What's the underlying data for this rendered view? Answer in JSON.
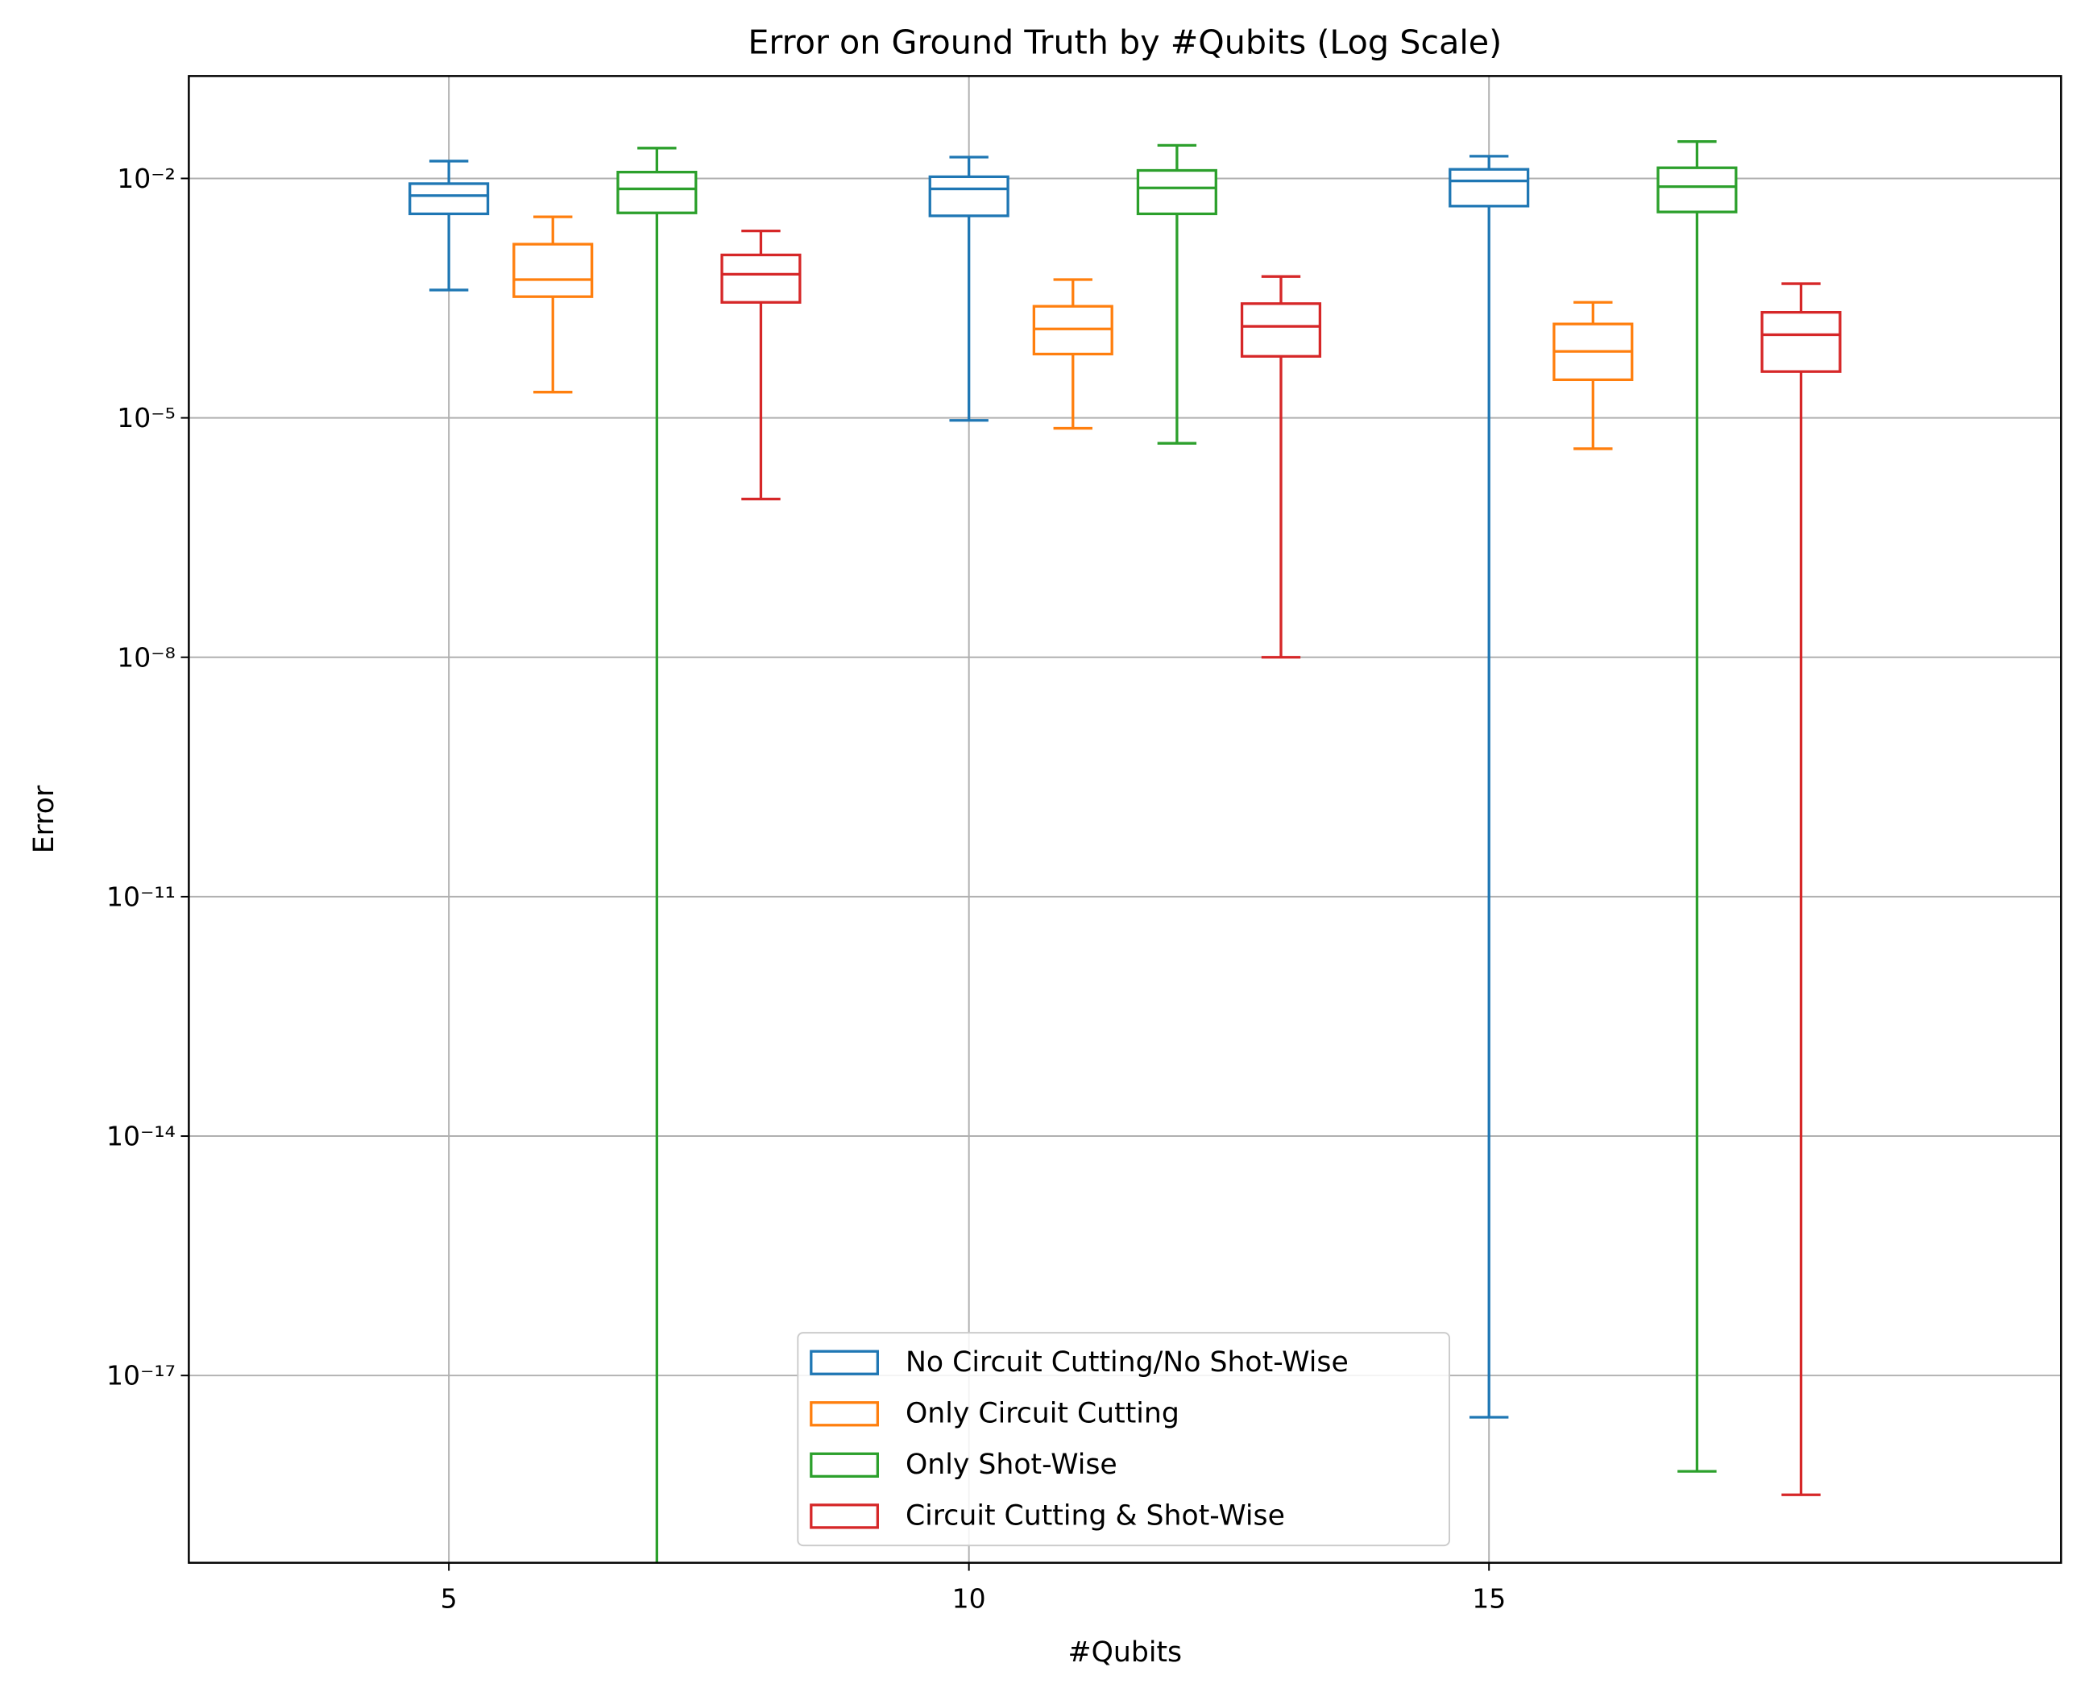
{
  "chart_data": {
    "type": "box",
    "title": "Error on Ground Truth by #Qubits (Log Scale)",
    "x_label": "#Qubits",
    "y_label": "Error",
    "yscale": "log",
    "grid": true,
    "legend": "lower center",
    "xlim": [
      2.5,
      20.5
    ],
    "xticks": [
      5,
      10,
      15
    ],
    "ylim": [
      4.5e-20,
      0.192
    ],
    "yticks": [
      {
        "value": 1e-17,
        "label": "10⁻¹⁷"
      },
      {
        "value": 1e-14,
        "label": "10⁻¹⁴"
      },
      {
        "value": 1e-11,
        "label": "10⁻¹¹"
      },
      {
        "value": 1e-08,
        "label": "10⁻⁸"
      },
      {
        "value": 1e-05,
        "label": "10⁻⁵"
      },
      {
        "value": 0.01,
        "label": "10⁻²"
      }
    ],
    "box_width": 0.75,
    "series": [
      {
        "name": "No Circuit Cutting/No Shot-Wise",
        "color": "#1f77b4",
        "x": [
          5,
          10,
          15
        ],
        "whislo": [
          0.0004,
          9.3e-06,
          3e-18
        ],
        "q1": [
          0.0036,
          0.0034,
          0.0045
        ],
        "median": [
          0.0061,
          0.0074,
          0.0093
        ],
        "q3": [
          0.0086,
          0.0105,
          0.013
        ],
        "whishi": [
          0.0165,
          0.0185,
          0.019
        ]
      },
      {
        "name": "Only Circuit Cutting",
        "color": "#ff7f0e",
        "x": [
          6,
          11,
          16
        ],
        "whislo": [
          2.1e-05,
          7.4e-06,
          4.1e-06
        ],
        "q1": [
          0.00033,
          6.3e-05,
          3e-05
        ],
        "median": [
          0.00054,
          0.00013,
          6.8e-05
        ],
        "q3": [
          0.0015,
          0.00025,
          0.00015
        ],
        "whishi": [
          0.0033,
          0.00054,
          0.00028
        ]
      },
      {
        "name": "Only Shot-Wise",
        "color": "#2ca02c",
        "x": [
          7,
          12,
          17
        ],
        "whislo": [
          1e-22,
          4.8e-06,
          6.3e-19
        ],
        "q1": [
          0.0037,
          0.0036,
          0.0038
        ],
        "median": [
          0.0074,
          0.0076,
          0.0079
        ],
        "q3": [
          0.012,
          0.0126,
          0.0136
        ],
        "whishi": [
          0.024,
          0.026,
          0.029
        ]
      },
      {
        "name": "Circuit Cutting & Shot-Wise",
        "color": "#d62728",
        "x": [
          8,
          13,
          18
        ],
        "whislo": [
          9.6e-07,
          1e-08,
          3.2e-19
        ],
        "q1": [
          0.00028,
          5.9e-05,
          3.8e-05
        ],
        "median": [
          0.00063,
          0.00014,
          0.00011
        ],
        "q3": [
          0.0011,
          0.00027,
          0.00021
        ],
        "whishi": [
          0.0022,
          0.00059,
          0.00048
        ]
      }
    ]
  }
}
